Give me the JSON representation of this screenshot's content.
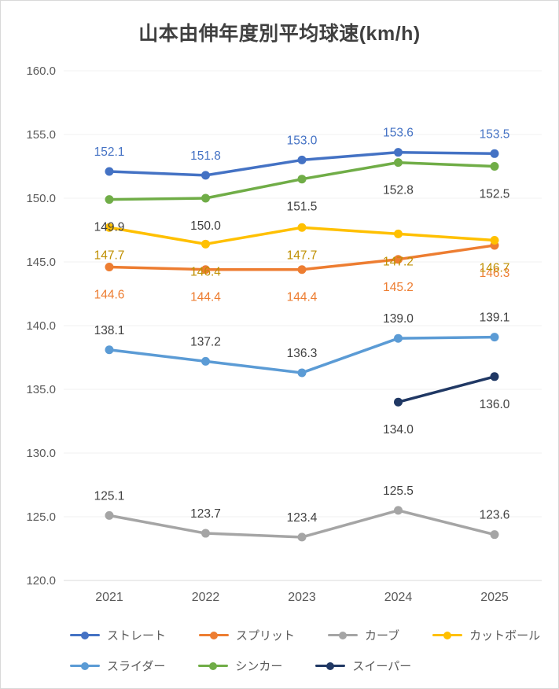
{
  "title": "山本由伸年度別平均球速(km/h)",
  "chart_data": {
    "type": "line",
    "title": "山本由伸年度別平均球速(km/h)",
    "categories": [
      "2021",
      "2022",
      "2023",
      "2024",
      "2025"
    ],
    "series": [
      {
        "name": "ストレート",
        "color": "#4472C4",
        "label_color": "#4472C4",
        "label_position": "above",
        "values": [
          152.1,
          151.8,
          153.0,
          153.6,
          153.5
        ]
      },
      {
        "name": "スプリット",
        "color": "#ED7D31",
        "label_color": "#ED7D31",
        "label_position": "below",
        "values": [
          144.6,
          144.4,
          144.4,
          145.2,
          146.3
        ]
      },
      {
        "name": "カーブ",
        "color": "#A5A5A5",
        "label_color": "#404040",
        "label_position": "above",
        "values": [
          125.1,
          123.7,
          123.4,
          125.5,
          123.6
        ]
      },
      {
        "name": "カットボール",
        "color": "#FFC000",
        "label_color": "#BF8F00",
        "label_position": "below",
        "values": [
          147.7,
          146.4,
          147.7,
          147.2,
          146.7
        ]
      },
      {
        "name": "スライダー",
        "color": "#5B9BD5",
        "label_color": "#404040",
        "label_position": "above",
        "values": [
          138.1,
          137.2,
          136.3,
          139.0,
          139.1
        ]
      },
      {
        "name": "シンカー",
        "color": "#70AD47",
        "label_color": "#404040",
        "label_position": "below",
        "values": [
          149.9,
          150.0,
          151.5,
          152.8,
          152.5
        ]
      },
      {
        "name": "スイーパー",
        "color": "#203864",
        "label_color": "#404040",
        "label_position": "below",
        "values": [
          null,
          null,
          null,
          134.0,
          136.0
        ]
      }
    ],
    "y_ticks": [
      120,
      125,
      130,
      135,
      140,
      145,
      150,
      155,
      160
    ],
    "ylim": [
      120,
      160
    ],
    "ytick_step": 5,
    "grid": true,
    "legend_position": "bottom",
    "xlabel": "",
    "ylabel": ""
  }
}
